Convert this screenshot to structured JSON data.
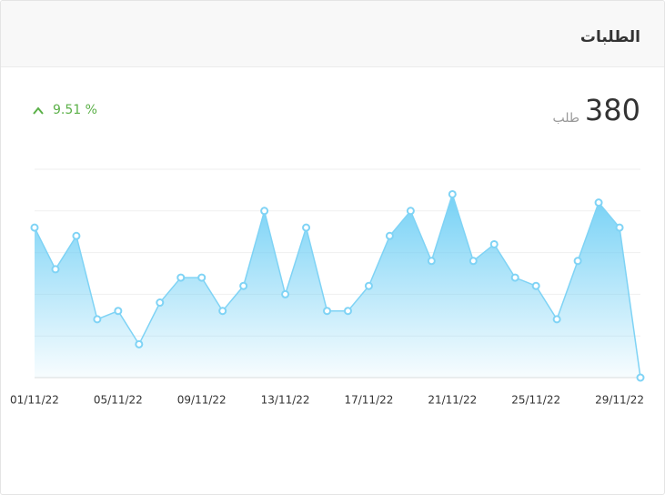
{
  "header": {
    "title": "الطلبات"
  },
  "summary": {
    "total": 380,
    "unit": "طلب",
    "change": "9.51 %"
  },
  "chart_data": {
    "type": "area",
    "categories": [
      "01/11/22",
      null,
      null,
      null,
      "05/11/22",
      null,
      null,
      null,
      "09/11/22",
      null,
      null,
      null,
      "13/11/22",
      null,
      null,
      null,
      "17/11/22",
      null,
      null,
      null,
      "21/11/22",
      null,
      null,
      null,
      "25/11/22",
      null,
      null,
      null,
      "29/11/22",
      null
    ],
    "values": [
      18,
      13,
      17,
      7,
      8,
      4,
      9,
      12,
      12,
      8,
      11,
      20,
      10,
      18,
      8,
      8,
      11,
      17,
      20,
      14,
      22,
      14,
      16,
      12,
      11,
      7,
      14,
      21,
      18,
      0
    ],
    "color": "#7fd3f5",
    "ylim": [
      0,
      25
    ],
    "yticks": [
      0,
      5,
      10,
      15,
      20,
      25
    ],
    "grid": true
  }
}
